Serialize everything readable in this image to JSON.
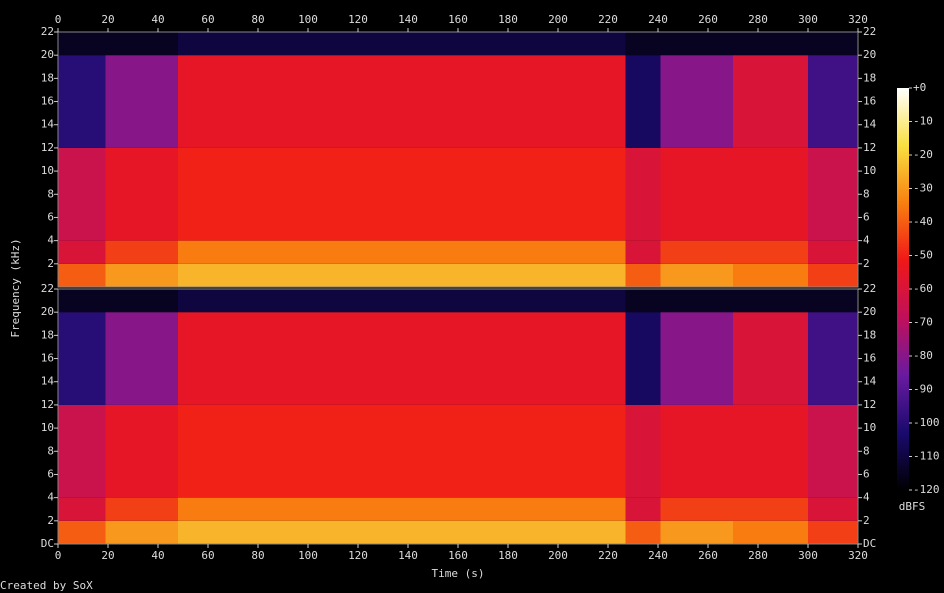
{
  "chart_data": [
    {
      "type": "heatmap",
      "ylabel": "Frequency (kHz)",
      "xlim": [
        0,
        320
      ],
      "xticks": [
        0,
        20,
        40,
        60,
        80,
        100,
        120,
        140,
        160,
        180,
        200,
        220,
        240,
        260,
        280,
        300,
        320
      ],
      "ylim": [
        0,
        22
      ],
      "yticks": [
        2,
        4,
        6,
        8,
        10,
        12,
        14,
        16,
        18,
        20,
        22
      ],
      "x_edges": [
        0,
        19,
        48,
        227,
        241,
        270,
        300,
        320
      ],
      "y_edges": [
        0,
        2,
        4,
        12,
        20,
        22
      ],
      "z": [
        [
          -40,
          -30,
          -25,
          -40,
          -30,
          -35,
          -45
        ],
        [
          -60,
          -45,
          -35,
          -60,
          -45,
          -45,
          -60
        ],
        [
          -65,
          -55,
          -50,
          -60,
          -55,
          -55,
          -65
        ],
        [
          -100,
          -80,
          -55,
          -105,
          -80,
          -60,
          -95
        ],
        [
          -115,
          -115,
          -110,
          -115,
          -115,
          -115,
          -115
        ]
      ]
    },
    {
      "type": "heatmap",
      "xlabel": "Time (s)",
      "xlim": [
        0,
        320
      ],
      "xticks": [
        0,
        20,
        40,
        60,
        80,
        100,
        120,
        140,
        160,
        180,
        200,
        220,
        240,
        260,
        280,
        300,
        320
      ],
      "ylim": [
        0,
        22
      ],
      "yticks": [
        {
          "value": 0,
          "label": "DC"
        },
        2,
        4,
        6,
        8,
        10,
        12,
        14,
        16,
        18,
        20,
        22
      ],
      "x_edges": [
        0,
        19,
        48,
        227,
        241,
        270,
        300,
        320
      ],
      "y_edges": [
        0,
        2,
        4,
        12,
        20,
        22
      ],
      "z": [
        [
          -40,
          -30,
          -25,
          -40,
          -30,
          -35,
          -45
        ],
        [
          -60,
          -45,
          -35,
          -60,
          -45,
          -45,
          -60
        ],
        [
          -65,
          -55,
          -50,
          -60,
          -55,
          -55,
          -65
        ],
        [
          -100,
          -80,
          -55,
          -105,
          -80,
          -60,
          -95
        ],
        [
          -115,
          -115,
          -110,
          -115,
          -115,
          -115,
          -115
        ]
      ]
    }
  ],
  "colorbar": {
    "label": "dBFS",
    "lim": [
      -120,
      0
    ],
    "ticks": [
      {
        "value": 0,
        "label": "+0"
      },
      -10,
      -20,
      -30,
      -40,
      -50,
      -60,
      -70,
      -80,
      -90,
      -100,
      -110,
      -120
    ],
    "colors": [
      "#000000",
      "#1a0a6e",
      "#6a1aa0",
      "#c0105a",
      "#f01818",
      "#f88010",
      "#f8e040",
      "#ffffff"
    ]
  },
  "footer": "Created by SoX"
}
